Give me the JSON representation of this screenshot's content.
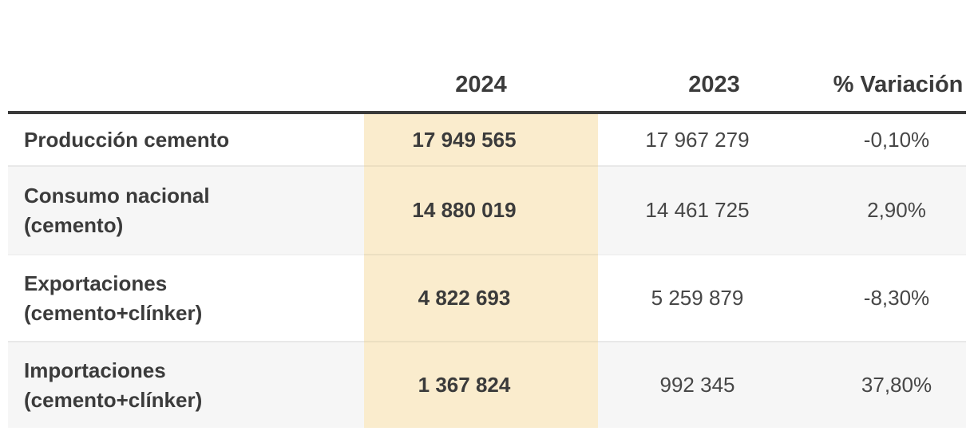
{
  "chart_data": {
    "type": "table",
    "columns": [
      "",
      "2024",
      "2023",
      "% Variación"
    ],
    "rows": [
      [
        "Producción cemento",
        "17 949 565",
        "17 967 279",
        "-0,10%"
      ],
      [
        "Consumo nacional (cemento)",
        "14 880 019",
        "14 461 725",
        "2,90%"
      ],
      [
        "Exportaciones (cemento+clínker)",
        "4 822 693",
        "5 259 879",
        "-8,30%"
      ],
      [
        "Importaciones (cemento+clínker)",
        "1 367 824",
        "992 345",
        "37,80%"
      ]
    ],
    "numeric_rows": [
      {
        "label": "Producción cemento",
        "y2024": 17949565,
        "y2023": 17967279,
        "variation_pct": -0.1
      },
      {
        "label": "Consumo nacional (cemento)",
        "y2024": 14880019,
        "y2023": 14461725,
        "variation_pct": 2.9
      },
      {
        "label": "Exportaciones (cemento+clínker)",
        "y2024": 4822693,
        "y2023": 5259879,
        "variation_pct": -8.3
      },
      {
        "label": "Importaciones (cemento+clínker)",
        "y2024": 1367824,
        "y2023": 992345,
        "variation_pct": 37.8
      }
    ],
    "highlighted_column": "2024",
    "layout_hints": {
      "highlight_bg": "#faeccd",
      "alt_row_bg": "#f6f6f6",
      "header_rule_color": "#3a3a3a"
    }
  },
  "table": {
    "header": {
      "year_current": "2024",
      "year_previous": "2023",
      "variation_label": "%\nVariación"
    },
    "rows": [
      {
        "label": "Producción cemento",
        "value_2024": "17 949 565",
        "value_2023": "17 967 279",
        "variation": "-0,10%"
      },
      {
        "label": "Consumo nacional\n(cemento)",
        "value_2024": "14 880 019",
        "value_2023": "14 461 725",
        "variation": "2,90%"
      },
      {
        "label": "Exportaciones\n(cemento+clínker)",
        "value_2024": "4 822 693",
        "value_2023": "5 259 879",
        "variation": "-8,30%"
      },
      {
        "label": "Importaciones\n(cemento+clínker)",
        "value_2024": "1 367 824",
        "value_2023": "992 345",
        "variation": "37,80%"
      }
    ],
    "colors": {
      "highlight_column_bg": "#faeccd",
      "alt_row_bg": "#f6f6f6",
      "header_rule": "#3a3a3a",
      "text": "#3b3b3b"
    }
  }
}
